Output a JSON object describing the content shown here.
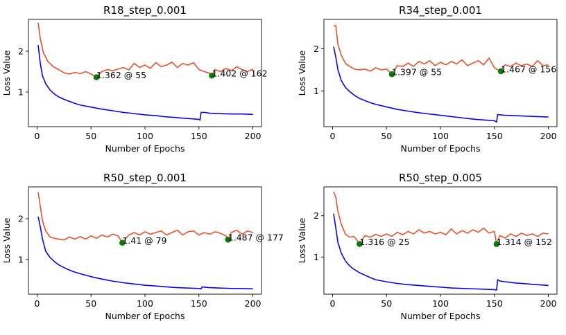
{
  "chart_data": [
    {
      "type": "line",
      "title": "R18_step_0.001",
      "xlabel": "Number of Epochs",
      "ylabel": "Loss Value",
      "xlim": [
        -8,
        208
      ],
      "ylim": [
        0.15,
        2.78
      ],
      "xticks": [
        0,
        50,
        100,
        150,
        200
      ],
      "yticks": [
        1,
        2
      ],
      "grid": false,
      "colors": {
        "val": "#e8502f",
        "train": "#0a00f0",
        "marker": "#0a7a0a"
      },
      "series": [
        {
          "role": "val",
          "x": [
            1,
            3,
            6,
            10,
            15,
            20,
            25,
            30,
            35,
            40,
            45,
            50,
            55,
            60,
            65,
            70,
            75,
            80,
            85,
            90,
            95,
            100,
            105,
            110,
            115,
            120,
            125,
            130,
            135,
            140,
            145,
            150,
            155,
            160,
            162,
            165,
            170,
            175,
            180,
            185,
            190,
            195,
            200
          ],
          "values": [
            2.7,
            2.3,
            1.95,
            1.75,
            1.62,
            1.55,
            1.47,
            1.44,
            1.48,
            1.45,
            1.5,
            1.44,
            1.36,
            1.5,
            1.55,
            1.52,
            1.56,
            1.6,
            1.54,
            1.7,
            1.6,
            1.66,
            1.58,
            1.72,
            1.62,
            1.66,
            1.73,
            1.6,
            1.7,
            1.66,
            1.72,
            1.55,
            1.5,
            1.46,
            1.4,
            1.55,
            1.5,
            1.58,
            1.52,
            1.62,
            1.55,
            1.5,
            1.56
          ]
        },
        {
          "role": "train",
          "x": [
            1,
            3,
            5,
            8,
            12,
            16,
            20,
            25,
            30,
            35,
            40,
            50,
            60,
            70,
            80,
            90,
            100,
            110,
            120,
            130,
            140,
            150,
            151,
            152,
            155,
            160,
            170,
            180,
            190,
            200
          ],
          "values": [
            2.15,
            1.7,
            1.4,
            1.2,
            1.05,
            0.95,
            0.88,
            0.82,
            0.77,
            0.72,
            0.68,
            0.63,
            0.58,
            0.54,
            0.5,
            0.47,
            0.44,
            0.42,
            0.39,
            0.37,
            0.35,
            0.33,
            0.31,
            0.5,
            0.5,
            0.48,
            0.47,
            0.46,
            0.46,
            0.45
          ]
        }
      ],
      "annotations": [
        {
          "label": "1.362 @ 55",
          "x": 55,
          "y": 1.362
        },
        {
          "label": "1.402 @ 162",
          "x": 162,
          "y": 1.402
        }
      ]
    },
    {
      "type": "line",
      "title": "R34_step_0.001",
      "xlabel": "Number of Epochs",
      "ylabel": "Loss Value",
      "xlim": [
        -8,
        208
      ],
      "ylim": [
        0.15,
        2.7
      ],
      "xticks": [
        0,
        50,
        100,
        150,
        200
      ],
      "yticks": [
        1,
        2
      ],
      "grid": false,
      "colors": {
        "val": "#e8502f",
        "train": "#0a00f0",
        "marker": "#0a7a0a"
      },
      "series": [
        {
          "role": "val",
          "x": [
            1,
            3,
            5,
            8,
            12,
            16,
            20,
            25,
            30,
            35,
            40,
            45,
            50,
            55,
            60,
            65,
            70,
            75,
            80,
            85,
            90,
            95,
            100,
            105,
            110,
            115,
            120,
            125,
            130,
            135,
            140,
            145,
            150,
            155,
            160,
            165,
            170,
            175,
            180,
            185,
            190,
            195,
            200
          ],
          "values": [
            2.55,
            2.55,
            2.1,
            1.85,
            1.65,
            1.58,
            1.52,
            1.5,
            1.52,
            1.47,
            1.55,
            1.5,
            1.52,
            1.4,
            1.6,
            1.58,
            1.66,
            1.58,
            1.7,
            1.64,
            1.72,
            1.6,
            1.68,
            1.62,
            1.7,
            1.64,
            1.74,
            1.6,
            1.66,
            1.72,
            1.62,
            1.78,
            1.55,
            1.47,
            1.62,
            1.58,
            1.66,
            1.6,
            1.64,
            1.58,
            1.72,
            1.6,
            1.62
          ]
        },
        {
          "role": "train",
          "x": [
            1,
            3,
            5,
            8,
            12,
            16,
            20,
            25,
            30,
            35,
            40,
            50,
            60,
            70,
            80,
            90,
            100,
            110,
            120,
            130,
            140,
            150,
            152,
            153,
            155,
            160,
            170,
            180,
            190,
            200
          ],
          "values": [
            2.05,
            1.8,
            1.5,
            1.25,
            1.08,
            0.98,
            0.9,
            0.82,
            0.77,
            0.72,
            0.68,
            0.62,
            0.56,
            0.52,
            0.48,
            0.45,
            0.42,
            0.39,
            0.36,
            0.33,
            0.31,
            0.29,
            0.26,
            0.44,
            0.43,
            0.42,
            0.41,
            0.4,
            0.39,
            0.38
          ]
        }
      ],
      "annotations": [
        {
          "label": "1.397 @ 55",
          "x": 55,
          "y": 1.397
        },
        {
          "label": "1.467 @ 156",
          "x": 156,
          "y": 1.467
        }
      ]
    },
    {
      "type": "line",
      "title": "R50_step_0.001",
      "xlabel": "Number of Epochs",
      "ylabel": "Loss Value",
      "xlim": [
        -8,
        208
      ],
      "ylim": [
        0.15,
        2.78
      ],
      "xticks": [
        0,
        50,
        100,
        150,
        200
      ],
      "yticks": [
        1,
        2
      ],
      "grid": false,
      "colors": {
        "val": "#e8502f",
        "train": "#0a00f0",
        "marker": "#0a7a0a"
      },
      "series": [
        {
          "role": "val",
          "x": [
            1,
            3,
            5,
            8,
            12,
            16,
            20,
            25,
            30,
            35,
            40,
            45,
            50,
            55,
            60,
            65,
            70,
            75,
            79,
            85,
            90,
            95,
            100,
            105,
            110,
            115,
            120,
            125,
            130,
            135,
            140,
            145,
            150,
            155,
            160,
            165,
            170,
            175,
            177,
            180,
            185,
            190,
            195,
            200
          ],
          "values": [
            2.65,
            2.3,
            1.95,
            1.7,
            1.55,
            1.52,
            1.5,
            1.48,
            1.55,
            1.5,
            1.56,
            1.5,
            1.58,
            1.52,
            1.6,
            1.55,
            1.62,
            1.58,
            1.41,
            1.6,
            1.66,
            1.6,
            1.68,
            1.62,
            1.66,
            1.7,
            1.6,
            1.66,
            1.72,
            1.6,
            1.68,
            1.7,
            1.6,
            1.66,
            1.62,
            1.68,
            1.64,
            1.58,
            1.49,
            1.66,
            1.72,
            1.62,
            1.7,
            1.66
          ]
        },
        {
          "role": "train",
          "x": [
            1,
            3,
            5,
            8,
            12,
            16,
            20,
            25,
            30,
            35,
            40,
            50,
            60,
            70,
            80,
            90,
            100,
            110,
            120,
            130,
            140,
            150,
            152,
            153,
            155,
            160,
            170,
            180,
            190,
            200
          ],
          "values": [
            2.05,
            1.8,
            1.5,
            1.2,
            1.05,
            0.95,
            0.87,
            0.8,
            0.74,
            0.69,
            0.65,
            0.58,
            0.52,
            0.47,
            0.43,
            0.4,
            0.37,
            0.35,
            0.33,
            0.31,
            0.3,
            0.29,
            0.28,
            0.33,
            0.32,
            0.31,
            0.3,
            0.29,
            0.29,
            0.28
          ]
        }
      ],
      "annotations": [
        {
          "label": "1.41 @ 79",
          "x": 79,
          "y": 1.41
        },
        {
          "label": "1.487 @ 177",
          "x": 177,
          "y": 1.487
        }
      ]
    },
    {
      "type": "line",
      "title": "R50_step_0.005",
      "xlabel": "Number of Epochs",
      "ylabel": "Loss Value",
      "xlim": [
        -8,
        208
      ],
      "ylim": [
        0.1,
        2.7
      ],
      "xticks": [
        0,
        50,
        100,
        150,
        200
      ],
      "yticks": [
        1,
        2
      ],
      "grid": false,
      "colors": {
        "val": "#e8502f",
        "train": "#0a00f0",
        "marker": "#0a7a0a"
      },
      "series": [
        {
          "role": "val",
          "x": [
            1,
            3,
            5,
            8,
            12,
            16,
            20,
            25,
            30,
            35,
            40,
            45,
            50,
            55,
            60,
            65,
            70,
            75,
            80,
            85,
            90,
            95,
            100,
            105,
            110,
            115,
            120,
            125,
            130,
            135,
            140,
            145,
            150,
            152,
            155,
            160,
            165,
            170,
            175,
            180,
            185,
            190,
            195,
            200
          ],
          "values": [
            2.58,
            2.45,
            2.1,
            1.8,
            1.55,
            1.48,
            1.5,
            1.32,
            1.52,
            1.48,
            1.55,
            1.5,
            1.56,
            1.5,
            1.6,
            1.54,
            1.62,
            1.56,
            1.66,
            1.58,
            1.62,
            1.56,
            1.6,
            1.54,
            1.68,
            1.56,
            1.64,
            1.58,
            1.66,
            1.6,
            1.7,
            1.58,
            1.62,
            1.31,
            1.52,
            1.46,
            1.56,
            1.5,
            1.58,
            1.52,
            1.56,
            1.5,
            1.58,
            1.56
          ]
        },
        {
          "role": "train",
          "x": [
            1,
            3,
            5,
            8,
            12,
            16,
            20,
            25,
            30,
            35,
            40,
            50,
            60,
            70,
            80,
            90,
            100,
            110,
            120,
            130,
            140,
            150,
            152,
            153,
            155,
            160,
            170,
            180,
            190,
            200
          ],
          "values": [
            2.05,
            1.7,
            1.35,
            1.1,
            0.9,
            0.78,
            0.7,
            0.62,
            0.56,
            0.5,
            0.45,
            0.4,
            0.36,
            0.33,
            0.31,
            0.29,
            0.27,
            0.25,
            0.24,
            0.23,
            0.22,
            0.21,
            0.2,
            0.45,
            0.42,
            0.4,
            0.37,
            0.35,
            0.33,
            0.31
          ]
        }
      ],
      "annotations": [
        {
          "label": "1.316 @ 25",
          "x": 25,
          "y": 1.316
        },
        {
          "label": "1.314 @ 152",
          "x": 152,
          "y": 1.314
        }
      ]
    }
  ]
}
